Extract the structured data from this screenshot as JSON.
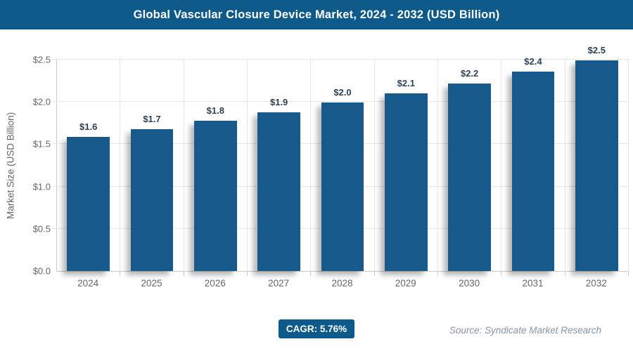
{
  "header": {
    "title": "Global Vascular Closure Device Market, 2024 - 2032 (USD Billion)"
  },
  "chart_data": {
    "type": "bar",
    "title": "Global Vascular Closure Device Market, 2024 - 2032 (USD Billion)",
    "categories": [
      "2024",
      "2025",
      "2026",
      "2027",
      "2028",
      "2029",
      "2030",
      "2031",
      "2032"
    ],
    "values": [
      1.59,
      1.68,
      1.78,
      1.88,
      1.99,
      2.1,
      2.22,
      2.36,
      2.49
    ],
    "labels": [
      "$1.6",
      "$1.7",
      "$1.8",
      "$1.9",
      "$2.0",
      "$2.1",
      "$2.2",
      "$2.4",
      "$2.5"
    ],
    "xlabel": "",
    "ylabel": "Market Size (USD Billion)",
    "yticks": [
      "$0.0",
      "$0.5",
      "$1.0",
      "$1.5",
      "$2.0",
      "$2.5"
    ],
    "ylim": [
      0,
      2.5
    ],
    "grid": true,
    "legend": false
  },
  "footer": {
    "cagr_label": "CAGR: 5.76%",
    "source": "Source: Syndicate Market Research"
  },
  "colors": {
    "header_bg": "#0E5A8A",
    "badge_bg": "#0E5A8A",
    "bar": "#16598A",
    "value_label": "#2E4156",
    "axis_text": "#666666",
    "gridline": "#E6E6E6",
    "source_text": "#8695A5"
  }
}
